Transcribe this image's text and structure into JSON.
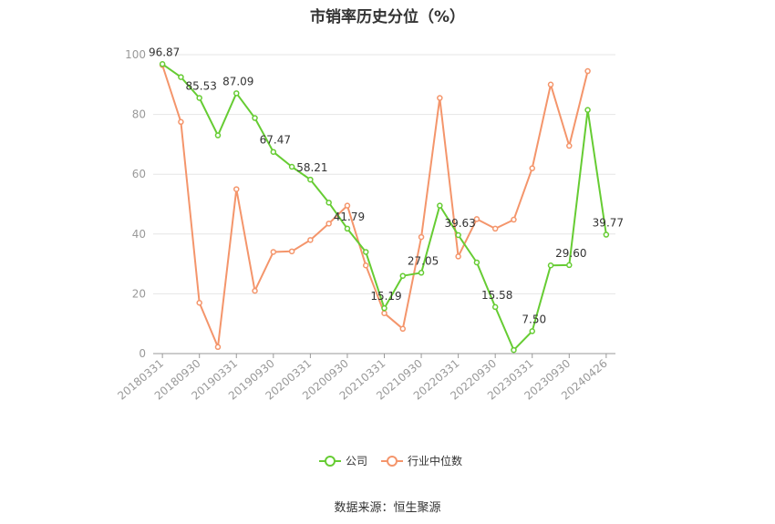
{
  "title": "市销率历史分位（%）",
  "source": "数据来源：恒生聚源",
  "chart_data": {
    "type": "line",
    "ylim": [
      0,
      100
    ],
    "yticks": [
      "0",
      "20",
      "40",
      "60",
      "80",
      "100"
    ],
    "x": [
      "20180331",
      "20180630",
      "20180930",
      "20181231",
      "20190331",
      "20190630",
      "20190930",
      "20191231",
      "20200331",
      "20200630",
      "20200930",
      "20201231",
      "20210331",
      "20210630",
      "20210930",
      "20211231",
      "20220331",
      "20220630",
      "20220930",
      "20221231",
      "20230331",
      "20230630",
      "20230930",
      "20231231",
      "20240426"
    ],
    "xtick_labels": [
      "20180331",
      "20180930",
      "20190331",
      "20190930",
      "20200331",
      "20200930",
      "20210331",
      "20210930",
      "20220331",
      "20220930",
      "20230331",
      "20230930",
      "20240426"
    ],
    "grid": true,
    "legend": "bottom-center",
    "series": [
      {
        "name": "公司",
        "color": "#66cc33",
        "values": [
          96.87,
          92.5,
          85.53,
          73.0,
          87.09,
          78.8,
          67.47,
          62.5,
          58.21,
          50.5,
          41.79,
          34.0,
          15.19,
          26.0,
          27.05,
          49.5,
          39.63,
          30.5,
          15.58,
          1.2,
          7.5,
          29.5,
          29.6,
          81.5,
          39.77
        ],
        "labels": {
          "0": "96.87",
          "2": "85.53",
          "4": "87.09",
          "6": "67.47",
          "8": "58.21",
          "10": "41.79",
          "12": "15.19",
          "14": "27.05",
          "16": "39.63",
          "18": "15.58",
          "20": "7.50",
          "22": "29.60",
          "24": "39.77"
        }
      },
      {
        "name": "行业中位数",
        "color": "#f4956b",
        "values": [
          96.5,
          77.5,
          17.0,
          2.2,
          55.0,
          21.0,
          34.0,
          34.2,
          38.0,
          43.5,
          49.5,
          29.5,
          13.5,
          8.3,
          39.0,
          85.5,
          32.5,
          45.0,
          41.8,
          44.8,
          62.0,
          90.0,
          69.5,
          94.5,
          null
        ]
      }
    ]
  }
}
